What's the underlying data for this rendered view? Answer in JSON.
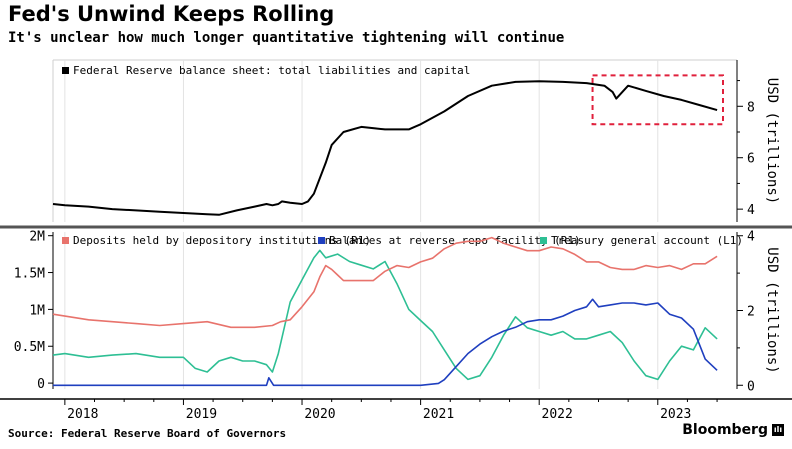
{
  "header": {
    "title": "Fed's Unwind Keeps Rolling",
    "subtitle": "It's unclear how much longer quantitative tightening will continue"
  },
  "footer": {
    "source": "Source: Federal Reserve Board of Governors",
    "brand": "Bloomberg",
    "brand_mark": "ılı"
  },
  "colors": {
    "balance_sheet": "#000000",
    "deposits": "#e8736c",
    "reverse_repo": "#1f3fbf",
    "tga": "#2ebf94",
    "highlight_box": "#e0203c",
    "divider": "#555555"
  },
  "chart_data": [
    {
      "type": "line",
      "panel": "top",
      "ylabel": "USD (trillions)",
      "y_axis_side": "right",
      "ylim": [
        3.5,
        9.8
      ],
      "yticks": [
        4,
        6,
        8
      ],
      "xlim": [
        2017.9,
        2023.55
      ],
      "legend": [
        {
          "name": "Federal Reserve balance sheet: total liabilities and capital",
          "color": "#000000"
        }
      ],
      "annotation": {
        "type": "dashed-box",
        "x_range": [
          2022.45,
          2023.55
        ],
        "y_range": [
          7.3,
          9.2
        ]
      },
      "series": [
        {
          "name": "Federal Reserve balance sheet: total liabilities and capital",
          "color": "#000000",
          "x": [
            2017.9,
            2018.0,
            2018.2,
            2018.4,
            2018.6,
            2018.8,
            2019.0,
            2019.2,
            2019.3,
            2019.45,
            2019.6,
            2019.7,
            2019.75,
            2019.8,
            2019.83,
            2019.9,
            2020.0,
            2020.05,
            2020.1,
            2020.2,
            2020.25,
            2020.35,
            2020.5,
            2020.7,
            2020.9,
            2021.0,
            2021.2,
            2021.4,
            2021.6,
            2021.8,
            2022.0,
            2022.2,
            2022.4,
            2022.55,
            2022.62,
            2022.65,
            2022.75,
            2022.9,
            2023.05,
            2023.2,
            2023.35,
            2023.5
          ],
          "y": [
            4.2,
            4.15,
            4.1,
            4.0,
            3.95,
            3.9,
            3.85,
            3.8,
            3.78,
            3.95,
            4.1,
            4.2,
            4.15,
            4.2,
            4.3,
            4.25,
            4.2,
            4.3,
            4.6,
            5.8,
            6.5,
            7.0,
            7.2,
            7.1,
            7.1,
            7.3,
            7.8,
            8.4,
            8.8,
            8.95,
            8.97,
            8.95,
            8.9,
            8.8,
            8.55,
            8.3,
            8.8,
            8.6,
            8.4,
            8.25,
            8.05,
            7.85
          ]
        }
      ]
    },
    {
      "type": "line",
      "panel": "bottom",
      "ylabel": "USD (trillions)",
      "y_axis_left": {
        "ylim": [
          -0.08,
          2.05
        ],
        "yticks": [
          0,
          0.5,
          1,
          1.5,
          2
        ],
        "ytick_labels": [
          "0",
          "0.5M",
          "1M",
          "1.5M",
          "2M"
        ]
      },
      "y_axis_right": {
        "ylim": [
          -0.1,
          4.1
        ],
        "yticks": [
          0,
          2,
          4
        ],
        "ytick_labels": [
          "0",
          "2",
          "4"
        ]
      },
      "xlim": [
        2017.9,
        2023.55
      ],
      "xtick_labels": [
        "2018",
        "2019",
        "2020",
        "2021",
        "2022",
        "2023"
      ],
      "xticks": [
        2018,
        2019,
        2020,
        2021,
        2022,
        2023
      ],
      "legend": [
        {
          "name": "Deposits held by depository institutions (R1)",
          "color": "#e8736c"
        },
        {
          "name": "Balances at reverse repo facility (R1)",
          "color": "#1f3fbf"
        },
        {
          "name": "Treasury general account (L1)",
          "color": "#2ebf94"
        }
      ],
      "series": [
        {
          "name": "Deposits held by depository institutions (R1)",
          "axis": "right",
          "color": "#e8736c",
          "x": [
            2017.9,
            2018.0,
            2018.2,
            2018.4,
            2018.6,
            2018.8,
            2019.0,
            2019.2,
            2019.4,
            2019.6,
            2019.75,
            2019.82,
            2019.9,
            2020.0,
            2020.1,
            2020.15,
            2020.2,
            2020.25,
            2020.3,
            2020.35,
            2020.5,
            2020.6,
            2020.7,
            2020.8,
            2020.9,
            2021.0,
            2021.1,
            2021.2,
            2021.3,
            2021.4,
            2021.5,
            2021.6,
            2021.7,
            2021.8,
            2021.9,
            2022.0,
            2022.1,
            2022.2,
            2022.3,
            2022.4,
            2022.5,
            2022.6,
            2022.7,
            2022.8,
            2022.9,
            2023.0,
            2023.1,
            2023.2,
            2023.3,
            2023.4,
            2023.5
          ],
          "y": [
            1.9,
            1.85,
            1.75,
            1.7,
            1.65,
            1.6,
            1.65,
            1.7,
            1.55,
            1.55,
            1.6,
            1.7,
            1.75,
            2.1,
            2.5,
            2.9,
            3.2,
            3.1,
            2.95,
            2.8,
            2.8,
            2.8,
            3.05,
            3.2,
            3.15,
            3.3,
            3.4,
            3.65,
            3.8,
            3.85,
            3.85,
            3.95,
            3.8,
            3.7,
            3.6,
            3.6,
            3.7,
            3.65,
            3.5,
            3.3,
            3.3,
            3.15,
            3.1,
            3.1,
            3.2,
            3.15,
            3.2,
            3.1,
            3.25,
            3.25,
            3.45
          ]
        },
        {
          "name": "Balances at reverse repo facility (R1)",
          "axis": "right",
          "color": "#1f3fbf",
          "x": [
            2017.9,
            2018.5,
            2019.0,
            2019.5,
            2019.7,
            2019.72,
            2019.76,
            2020.0,
            2020.5,
            2021.0,
            2021.15,
            2021.2,
            2021.3,
            2021.4,
            2021.5,
            2021.6,
            2021.7,
            2021.8,
            2021.9,
            2022.0,
            2022.1,
            2022.2,
            2022.3,
            2022.4,
            2022.45,
            2022.5,
            2022.6,
            2022.7,
            2022.8,
            2022.9,
            2023.0,
            2023.1,
            2023.2,
            2023.3,
            2023.4,
            2023.5
          ],
          "y": [
            0.0,
            0.0,
            0.0,
            0.0,
            0.0,
            0.2,
            0.0,
            0.0,
            0.0,
            0.0,
            0.05,
            0.15,
            0.5,
            0.85,
            1.1,
            1.3,
            1.45,
            1.55,
            1.7,
            1.75,
            1.75,
            1.85,
            2.0,
            2.1,
            2.3,
            2.1,
            2.15,
            2.2,
            2.2,
            2.15,
            2.2,
            1.9,
            1.8,
            1.5,
            0.7,
            0.4
          ]
        },
        {
          "name": "Treasury general account (L1)",
          "axis": "left",
          "color": "#2ebf94",
          "x": [
            2017.9,
            2018.0,
            2018.2,
            2018.4,
            2018.6,
            2018.8,
            2019.0,
            2019.1,
            2019.2,
            2019.3,
            2019.4,
            2019.5,
            2019.6,
            2019.7,
            2019.75,
            2019.8,
            2019.9,
            2020.0,
            2020.1,
            2020.15,
            2020.2,
            2020.3,
            2020.4,
            2020.5,
            2020.6,
            2020.7,
            2020.8,
            2020.9,
            2021.0,
            2021.1,
            2021.2,
            2021.3,
            2021.4,
            2021.5,
            2021.6,
            2021.7,
            2021.8,
            2021.9,
            2022.0,
            2022.1,
            2022.2,
            2022.3,
            2022.4,
            2022.5,
            2022.6,
            2022.7,
            2022.8,
            2022.9,
            2023.0,
            2023.1,
            2023.2,
            2023.3,
            2023.4,
            2023.5
          ],
          "y": [
            0.38,
            0.4,
            0.35,
            0.38,
            0.4,
            0.35,
            0.35,
            0.2,
            0.15,
            0.3,
            0.35,
            0.3,
            0.3,
            0.25,
            0.15,
            0.4,
            1.1,
            1.4,
            1.7,
            1.8,
            1.7,
            1.75,
            1.65,
            1.6,
            1.55,
            1.65,
            1.35,
            1.0,
            0.85,
            0.7,
            0.45,
            0.2,
            0.05,
            0.1,
            0.35,
            0.65,
            0.9,
            0.75,
            0.7,
            0.65,
            0.7,
            0.6,
            0.6,
            0.65,
            0.7,
            0.55,
            0.3,
            0.1,
            0.05,
            0.3,
            0.5,
            0.45,
            0.75,
            0.6
          ]
        }
      ]
    }
  ]
}
